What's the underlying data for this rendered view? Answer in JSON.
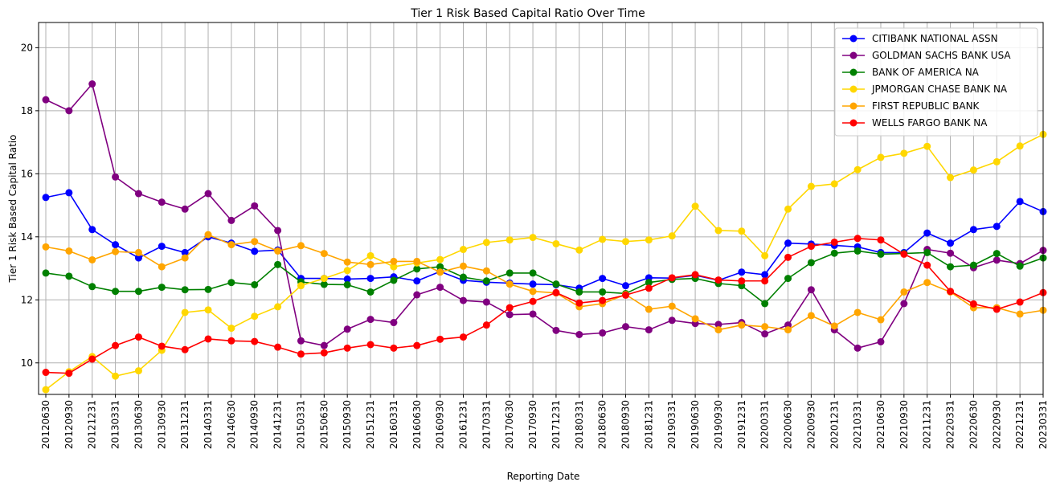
{
  "chart_data": {
    "type": "line",
    "title": "Tier 1 Risk Based Capital Ratio Over Time",
    "xlabel": "Reporting Date",
    "ylabel": "Tier 1 Risk Based Capital Ratio",
    "ylim": [
      9.0,
      20.8
    ],
    "yticks": [
      10,
      12,
      14,
      16,
      18,
      20
    ],
    "grid": true,
    "legend_position": "top-right",
    "categories": [
      "20120630",
      "20120930",
      "20121231",
      "20130331",
      "20130630",
      "20130930",
      "20131231",
      "20140331",
      "20140630",
      "20140930",
      "20141231",
      "20150331",
      "20150630",
      "20150930",
      "20151231",
      "20160331",
      "20160630",
      "20160930",
      "20161231",
      "20170331",
      "20170630",
      "20170930",
      "20171231",
      "20180331",
      "20180630",
      "20180930",
      "20181231",
      "20190331",
      "20190630",
      "20190930",
      "20191231",
      "20200331",
      "20200630",
      "20200930",
      "20201231",
      "20210331",
      "20210630",
      "20210930",
      "20211231",
      "20220331",
      "20220630",
      "20220930",
      "20221231",
      "20230331"
    ],
    "series": [
      {
        "name": "CITIBANK NATIONAL ASSN",
        "color": "#0000ff",
        "values": [
          15.25,
          15.4,
          14.23,
          13.75,
          13.33,
          13.7,
          13.5,
          14.0,
          13.8,
          13.54,
          13.58,
          12.68,
          12.68,
          12.66,
          12.68,
          12.73,
          12.6,
          12.9,
          12.62,
          12.56,
          12.53,
          12.5,
          12.48,
          12.37,
          12.68,
          12.45,
          12.7,
          12.69,
          12.78,
          12.62,
          12.88,
          12.8,
          13.8,
          13.77,
          13.73,
          13.68,
          13.5,
          13.5,
          14.12,
          13.8,
          14.23,
          14.33,
          15.12,
          14.8
        ]
      },
      {
        "name": "GOLDMAN SACHS BANK USA",
        "color": "#800080",
        "values": [
          18.35,
          18.0,
          18.85,
          15.9,
          15.37,
          15.1,
          14.88,
          15.37,
          14.52,
          14.98,
          14.2,
          10.7,
          10.55,
          11.07,
          11.38,
          11.28,
          12.16,
          12.4,
          11.98,
          11.93,
          11.53,
          11.55,
          11.03,
          10.9,
          10.95,
          11.15,
          11.05,
          11.35,
          11.25,
          11.22,
          11.28,
          10.92,
          11.2,
          12.32,
          11.05,
          10.47,
          10.67,
          11.88,
          13.6,
          13.48,
          13.02,
          13.26,
          13.15,
          13.57
        ]
      },
      {
        "name": "BANK OF AMERICA NA",
        "color": "#008000",
        "values": [
          12.85,
          12.75,
          12.42,
          12.27,
          12.27,
          12.4,
          12.32,
          12.33,
          12.55,
          12.48,
          13.12,
          12.57,
          12.49,
          12.48,
          12.25,
          12.62,
          12.98,
          13.05,
          12.72,
          12.6,
          12.85,
          12.85,
          12.5,
          12.25,
          12.25,
          12.2,
          12.55,
          12.65,
          12.68,
          12.52,
          12.45,
          11.88,
          12.68,
          13.18,
          13.48,
          13.55,
          13.45,
          13.47,
          13.5,
          13.05,
          13.1,
          13.47,
          13.07,
          13.33
        ]
      },
      {
        "name": "JPMORGAN CHASE BANK NA",
        "color": "#ffd700",
        "values": [
          9.15,
          9.72,
          10.2,
          9.58,
          9.75,
          10.4,
          11.6,
          11.68,
          11.1,
          11.48,
          11.78,
          12.45,
          12.68,
          12.93,
          13.4,
          13.05,
          13.17,
          13.28,
          13.6,
          13.82,
          13.9,
          13.98,
          13.78,
          13.58,
          13.92,
          13.85,
          13.9,
          14.03,
          14.97,
          14.2,
          14.18,
          13.4,
          14.88,
          15.6,
          15.68,
          16.13,
          16.52,
          16.65,
          16.87,
          15.88,
          16.12,
          16.38,
          16.88,
          17.25
        ]
      },
      {
        "name": "FIRST REPUBLIC BANK",
        "color": "#ffa500",
        "values": [
          13.68,
          13.55,
          13.27,
          13.53,
          13.5,
          13.05,
          13.33,
          14.07,
          13.75,
          13.85,
          13.55,
          13.72,
          13.47,
          13.2,
          13.12,
          13.22,
          13.22,
          12.88,
          13.07,
          12.92,
          12.5,
          12.27,
          12.22,
          11.78,
          11.88,
          12.17,
          11.7,
          11.8,
          11.4,
          11.05,
          11.2,
          11.15,
          11.05,
          11.5,
          11.17,
          11.6,
          11.37,
          12.25,
          12.55,
          12.25,
          11.75,
          11.75,
          11.55,
          11.67
        ]
      },
      {
        "name": "WELLS FARGO BANK NA",
        "color": "#ff0000",
        "values": [
          9.7,
          9.67,
          10.12,
          10.55,
          10.82,
          10.53,
          10.42,
          10.76,
          10.7,
          10.68,
          10.5,
          10.28,
          10.32,
          10.47,
          10.58,
          10.47,
          10.55,
          10.75,
          10.82,
          11.2,
          11.75,
          11.95,
          12.23,
          11.9,
          11.98,
          12.15,
          12.37,
          12.7,
          12.8,
          12.63,
          12.6,
          12.6,
          13.35,
          13.7,
          13.83,
          13.95,
          13.9,
          13.45,
          13.1,
          12.27,
          11.87,
          11.7,
          11.93,
          12.23
        ]
      }
    ]
  }
}
